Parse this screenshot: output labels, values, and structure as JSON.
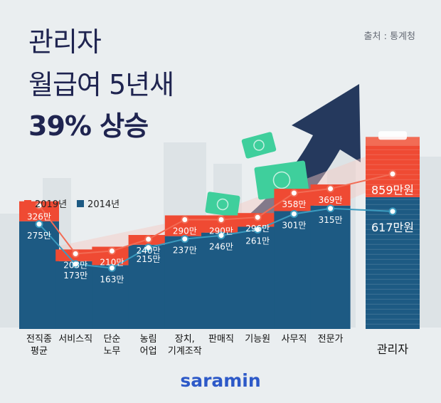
{
  "title": {
    "line1": "관리자",
    "line2": "월급여 5년새",
    "line3": "39% 상승"
  },
  "source": "출처 : 통계청",
  "brand": "saramin",
  "colors": {
    "y2019": "#ef4a33",
    "y2014": "#1d5a83",
    "title": "#1f2450",
    "arrow": "#25395d",
    "money": "#3fcf9c"
  },
  "chart_data": {
    "type": "bar",
    "categories": [
      "전직종\n평균",
      "서비스직",
      "단순\n노무",
      "농림\n어업",
      "장치,\n기계조작",
      "판매직",
      "기능원",
      "사무직",
      "전문가",
      "관리자"
    ],
    "series": [
      {
        "name": "2019년",
        "values": [
          326,
          203,
          210,
          240,
          290,
          290,
          296,
          358,
          369,
          859
        ],
        "labels": [
          "326만",
          "203만",
          "210만",
          "240만",
          "290만",
          "290만",
          "296만",
          "358만",
          "369만",
          "859만원"
        ]
      },
      {
        "name": "2014년",
        "values": [
          275,
          173,
          163,
          215,
          237,
          246,
          261,
          301,
          315,
          617
        ],
        "labels": [
          "275만",
          "173만",
          "163만",
          "215만",
          "237만",
          "246만",
          "261만",
          "301만",
          "315만",
          "617만원"
        ]
      }
    ],
    "title": "관리자 월급여 5년새 39% 상승",
    "legend_position": "top-left",
    "grid": false
  }
}
